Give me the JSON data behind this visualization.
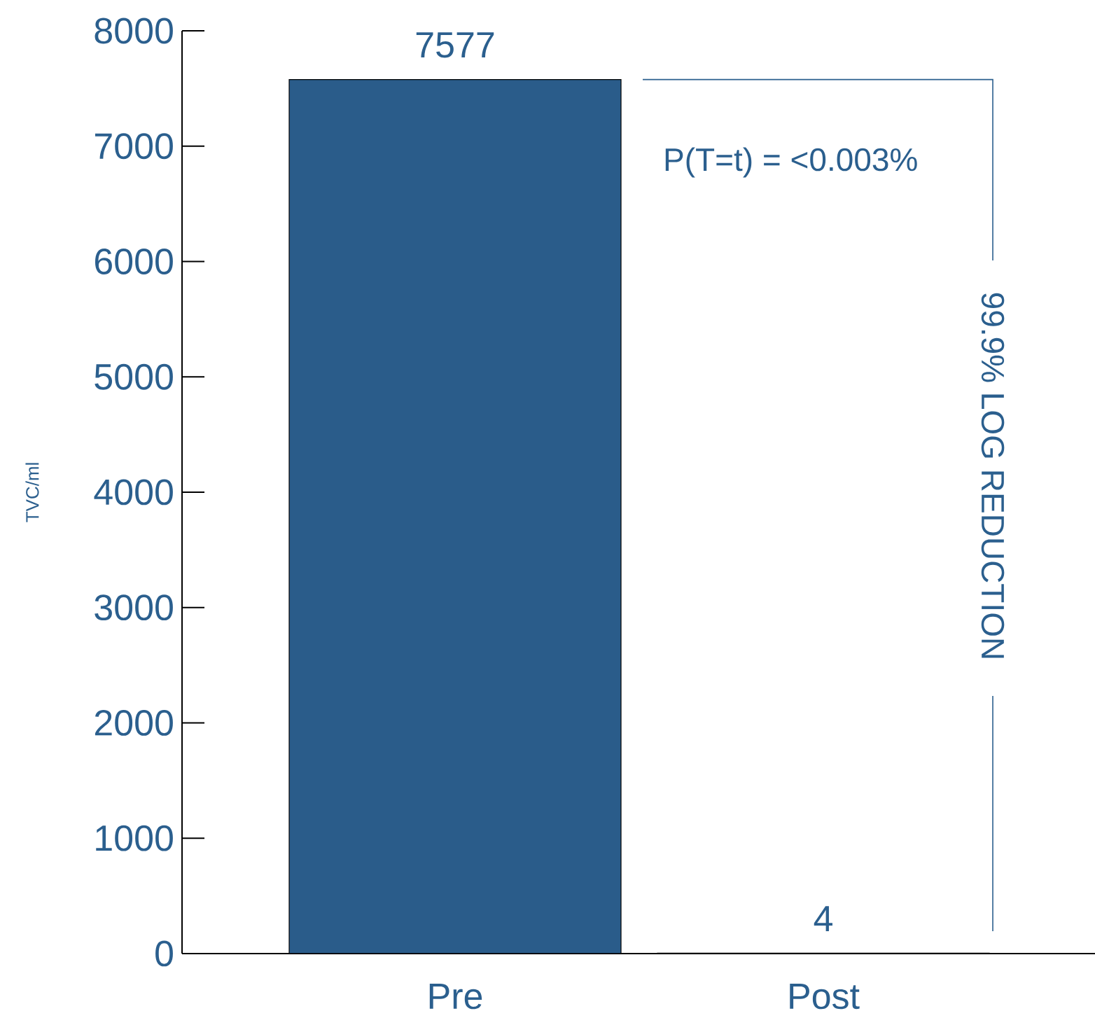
{
  "chart_data": {
    "type": "bar",
    "ylabel": "TVC/ml",
    "categories": [
      "Pre",
      "Post"
    ],
    "values": [
      7577,
      4
    ],
    "color": "#2a5c8a",
    "ylim": [
      0,
      8000
    ],
    "yticks": [
      0,
      1000,
      2000,
      3000,
      4000,
      5000,
      6000,
      7000,
      8000
    ],
    "data_labels": true,
    "grid": false,
    "annotations": [
      "P(T=t) = <0.003%",
      "99.9% LOG REDUCTION"
    ]
  }
}
